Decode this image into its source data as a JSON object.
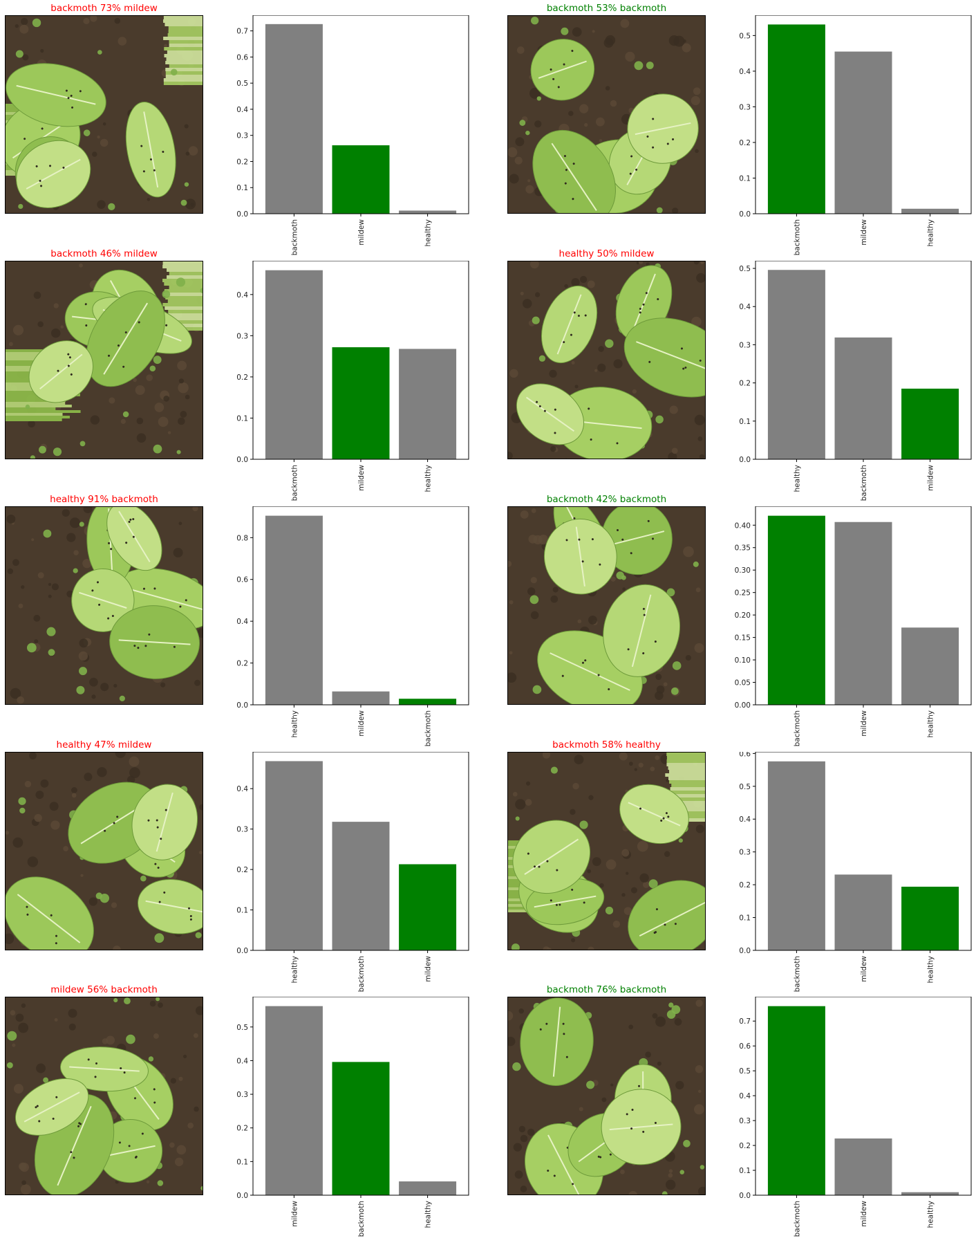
{
  "colors": {
    "correct": "#008000",
    "wrong": "#ff0000",
    "bar_default": "#808080",
    "bar_true": "#008000"
  },
  "panels": [
    {
      "title": "backmoth 73% mildew",
      "title_color": "#ff0000",
      "photo": "plant-image-augmented",
      "chart_data": {
        "type": "bar",
        "categories": [
          "backmoth",
          "mildew",
          "healthy"
        ],
        "values": [
          0.726,
          0.262,
          0.012
        ],
        "highlight": "mildew",
        "ylim": [
          0,
          0.76
        ],
        "yticks": [
          "0.0",
          "0.1",
          "0.2",
          "0.3",
          "0.4",
          "0.5",
          "0.6",
          "0.7"
        ]
      }
    },
    {
      "title": "backmoth 53% backmoth",
      "title_color": "#008000",
      "photo": "plant-image",
      "chart_data": {
        "type": "bar",
        "categories": [
          "backmoth",
          "mildew",
          "healthy"
        ],
        "values": [
          0.531,
          0.455,
          0.014
        ],
        "highlight": "backmoth",
        "ylim": [
          0,
          0.557
        ],
        "yticks": [
          "0.0",
          "0.1",
          "0.2",
          "0.3",
          "0.4",
          "0.5"
        ]
      }
    },
    {
      "title": "backmoth 46% mildew",
      "title_color": "#ff0000",
      "photo": "plant-image-augmented",
      "chart_data": {
        "type": "bar",
        "categories": [
          "backmoth",
          "mildew",
          "healthy"
        ],
        "values": [
          0.459,
          0.272,
          0.268
        ],
        "highlight": "mildew",
        "ylim": [
          0,
          0.482
        ],
        "yticks": [
          "0.0",
          "0.1",
          "0.2",
          "0.3",
          "0.4"
        ]
      }
    },
    {
      "title": "healthy 50% mildew",
      "title_color": "#ff0000",
      "photo": "plant-image",
      "chart_data": {
        "type": "bar",
        "categories": [
          "healthy",
          "backmoth",
          "mildew"
        ],
        "values": [
          0.496,
          0.319,
          0.185
        ],
        "highlight": "mildew",
        "ylim": [
          0,
          0.52
        ],
        "yticks": [
          "0.0",
          "0.1",
          "0.2",
          "0.3",
          "0.4",
          "0.5"
        ]
      }
    },
    {
      "title": "healthy 91% backmoth",
      "title_color": "#ff0000",
      "photo": "plant-image",
      "chart_data": {
        "type": "bar",
        "categories": [
          "healthy",
          "mildew",
          "backmoth"
        ],
        "values": [
          0.905,
          0.064,
          0.029
        ],
        "highlight": "backmoth",
        "ylim": [
          0,
          0.95
        ],
        "yticks": [
          "0.0",
          "0.2",
          "0.4",
          "0.6",
          "0.8"
        ]
      }
    },
    {
      "title": "backmoth 42% backmoth",
      "title_color": "#008000",
      "photo": "plant-image",
      "chart_data": {
        "type": "bar",
        "categories": [
          "backmoth",
          "mildew",
          "healthy"
        ],
        "values": [
          0.421,
          0.407,
          0.172
        ],
        "highlight": "backmoth",
        "ylim": [
          0,
          0.442
        ],
        "yticks": [
          "0.00",
          "0.05",
          "0.10",
          "0.15",
          "0.20",
          "0.25",
          "0.30",
          "0.35",
          "0.40"
        ]
      }
    },
    {
      "title": "healthy 47% mildew",
      "title_color": "#ff0000",
      "photo": "plant-image",
      "chart_data": {
        "type": "bar",
        "categories": [
          "healthy",
          "backmoth",
          "mildew"
        ],
        "values": [
          0.468,
          0.318,
          0.213
        ],
        "highlight": "mildew",
        "ylim": [
          0,
          0.491
        ],
        "yticks": [
          "0.0",
          "0.1",
          "0.2",
          "0.3",
          "0.4"
        ]
      }
    },
    {
      "title": "backmoth 58% healthy",
      "title_color": "#ff0000",
      "photo": "plant-image-augmented",
      "chart_data": {
        "type": "bar",
        "categories": [
          "backmoth",
          "mildew",
          "healthy"
        ],
        "values": [
          0.576,
          0.231,
          0.194
        ],
        "highlight": "healthy",
        "ylim": [
          0,
          0.605
        ],
        "yticks": [
          "0.0",
          "0.1",
          "0.2",
          "0.3",
          "0.4",
          "0.5",
          "0.6"
        ]
      }
    },
    {
      "title": "mildew 56% backmoth",
      "title_color": "#ff0000",
      "photo": "plant-image",
      "chart_data": {
        "type": "bar",
        "categories": [
          "mildew",
          "backmoth",
          "healthy"
        ],
        "values": [
          0.562,
          0.396,
          0.041
        ],
        "highlight": "backmoth",
        "ylim": [
          0,
          0.59
        ],
        "yticks": [
          "0.0",
          "0.1",
          "0.2",
          "0.3",
          "0.4",
          "0.5"
        ]
      }
    },
    {
      "title": "backmoth 76% backmoth",
      "title_color": "#008000",
      "photo": "plant-image",
      "chart_data": {
        "type": "bar",
        "categories": [
          "backmoth",
          "mildew",
          "healthy"
        ],
        "values": [
          0.76,
          0.228,
          0.012
        ],
        "highlight": "backmoth",
        "ylim": [
          0,
          0.798
        ],
        "yticks": [
          "0.0",
          "0.1",
          "0.2",
          "0.3",
          "0.4",
          "0.5",
          "0.6",
          "0.7"
        ]
      }
    }
  ]
}
